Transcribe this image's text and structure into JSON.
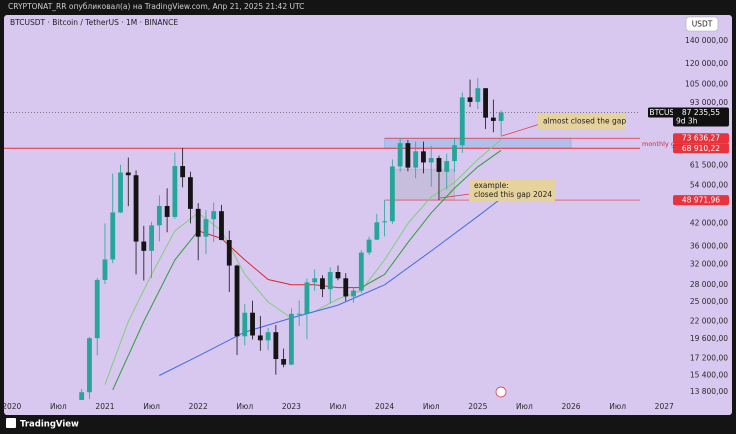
{
  "header": {
    "publisher": "CRYPTONAT_RR опубликовал(а) на TradingView.com, Апр 21, 2025 21:42 UTC",
    "brand": "TradingView"
  },
  "chart_data": {
    "type": "candlestick",
    "title": "BTCUSDT · Bitcoin / TetherUS · 1M · BINANCE",
    "currency_button": "USDT",
    "log_scale": true,
    "up_color": "#26a69a",
    "down_color": "#141414",
    "ylim": [
      13100,
      166000
    ],
    "yticks": [
      {
        "value": 140000,
        "label": "140 000,00"
      },
      {
        "value": 120000,
        "label": "120 000,00"
      },
      {
        "value": 105000,
        "label": "105 000,00"
      },
      {
        "value": 93000,
        "label": "93 000,00"
      },
      {
        "value": 61500,
        "label": "61 500,00"
      },
      {
        "value": 54000,
        "label": "54 000,00"
      },
      {
        "value": 42000,
        "label": "42 000,00"
      },
      {
        "value": 36000,
        "label": "36 000,00"
      },
      {
        "value": 32000,
        "label": "32 000,00"
      },
      {
        "value": 28000,
        "label": "28 000,00"
      },
      {
        "value": 25000,
        "label": "25 000,00"
      },
      {
        "value": 22000,
        "label": "22 000,00"
      },
      {
        "value": 19600,
        "label": "19 600,00"
      },
      {
        "value": 17200,
        "label": "17 200,00"
      },
      {
        "value": 15400,
        "label": "15 400,00"
      },
      {
        "value": 13800,
        "label": "13 800,00"
      }
    ],
    "xlim": [
      "2019-12",
      "2027-02"
    ],
    "xticks": [
      {
        "value": "2020-01",
        "label": "2020"
      },
      {
        "value": "2020-07",
        "label": "Июл"
      },
      {
        "value": "2021-01",
        "label": "2021"
      },
      {
        "value": "2021-07",
        "label": "Июл"
      },
      {
        "value": "2022-01",
        "label": "2022"
      },
      {
        "value": "2022-07",
        "label": "Июл"
      },
      {
        "value": "2023-01",
        "label": "2023"
      },
      {
        "value": "2023-07",
        "label": "Июл"
      },
      {
        "value": "2024-01",
        "label": "2024"
      },
      {
        "value": "2024-07",
        "label": "Июл"
      },
      {
        "value": "2025-01",
        "label": "2025"
      },
      {
        "value": "2025-07",
        "label": "Июл"
      },
      {
        "value": "2026-01",
        "label": "2026"
      },
      {
        "value": "2026-07",
        "label": "Июл"
      },
      {
        "value": "2027-01",
        "label": "2027"
      }
    ],
    "x": [
      "2020-10",
      "2020-11",
      "2020-12",
      "2021-01",
      "2021-02",
      "2021-03",
      "2021-04",
      "2021-05",
      "2021-06",
      "2021-07",
      "2021-08",
      "2021-09",
      "2021-10",
      "2021-11",
      "2021-12",
      "2022-01",
      "2022-02",
      "2022-03",
      "2022-04",
      "2022-05",
      "2022-06",
      "2022-07",
      "2022-08",
      "2022-09",
      "2022-10",
      "2022-11",
      "2022-12",
      "2023-01",
      "2023-02",
      "2023-03",
      "2023-04",
      "2023-05",
      "2023-06",
      "2023-07",
      "2023-08",
      "2023-09",
      "2023-10",
      "2023-11",
      "2023-12",
      "2024-01",
      "2024-02",
      "2024-03",
      "2024-04",
      "2024-05",
      "2024-06",
      "2024-07",
      "2024-08",
      "2024-09",
      "2024-10",
      "2024-11",
      "2024-12",
      "2025-01",
      "2025-02",
      "2025-03",
      "2025-04"
    ],
    "open": [
      10776,
      13791,
      19695,
      28923,
      33092,
      45135,
      58740,
      57697,
      37254,
      35045,
      41461,
      47100,
      43820,
      61300,
      56950,
      46217,
      38466,
      43160,
      45510,
      37630,
      31801,
      19942,
      23296,
      20050,
      19423,
      20490,
      17165,
      16541,
      23125,
      23141,
      28465,
      29233,
      27210,
      30472,
      29233,
      25941,
      26962,
      34640,
      37724,
      42283,
      42580,
      61131,
      71280,
      60672,
      67540,
      62772,
      64628,
      58974,
      63327,
      70292,
      96408,
      93576,
      102429,
      84350,
      82550
    ],
    "high": [
      14100,
      19863,
      29300,
      41950,
      58352,
      61844,
      64854,
      59592,
      41330,
      42448,
      50500,
      52920,
      67000,
      69000,
      59053,
      47990,
      45821,
      48190,
      47444,
      40023,
      31986,
      24668,
      25211,
      22799,
      21085,
      21480,
      18388,
      23960,
      25250,
      29184,
      31000,
      29820,
      31431,
      31804,
      30245,
      27483,
      35198,
      38450,
      44700,
      48969,
      64000,
      73777,
      72797,
      71979,
      71997,
      70080,
      65660,
      66498,
      73620,
      99588,
      108353,
      109588,
      102500,
      95000,
      88500
    ],
    "low": [
      10370,
      13195,
      17572,
      28130,
      32296,
      44950,
      47044,
      30000,
      28805,
      29278,
      37332,
      39600,
      43283,
      53256,
      42000,
      32917,
      34322,
      37155,
      37578,
      26700,
      17622,
      18782,
      19520,
      18125,
      18190,
      15476,
      16256,
      16499,
      21351,
      19549,
      26942,
      25811,
      24800,
      28861,
      25166,
      24900,
      26538,
      34097,
      37615,
      38555,
      41884,
      59005,
      59191,
      56552,
      58402,
      53485,
      49000,
      52550,
      58867,
      66835,
      90500,
      89256,
      78258,
      76606,
      74508
    ],
    "close": [
      13791,
      19695,
      28923,
      33092,
      45135,
      58740,
      57694,
      37253,
      35045,
      41461,
      47100,
      43824,
      61300,
      56950,
      46216,
      38466,
      43160,
      45510,
      37630,
      31801,
      19942,
      23293,
      20050,
      19423,
      20491,
      17164,
      16542,
      23125,
      23142,
      28465,
      29233,
      27211,
      30472,
      29232,
      25941,
      26962,
      34640,
      37723,
      42283,
      42580,
      61130,
      71280,
      60672,
      67540,
      62772,
      64628,
      58974,
      63327,
      70292,
      96408,
      93576,
      102429,
      84350,
      82550,
      87235.55
    ],
    "lines": [
      {
        "color": "#7fcf7a",
        "x": [
          "2021-01",
          "2021-04",
          "2021-07",
          "2021-10",
          "2022-01",
          "2022-04",
          "2022-07",
          "2022-10",
          "2023-01",
          "2023-04",
          "2023-07",
          "2023-10",
          "2024-01",
          "2024-04",
          "2024-07",
          "2024-10",
          "2025-01",
          "2025-04"
        ],
        "values": [
          14500,
          22000,
          30000,
          40000,
          45000,
          40000,
          30000,
          25000,
          22500,
          23500,
          25500,
          27000,
          33000,
          42000,
          50000,
          55000,
          64000,
          73000
        ]
      },
      {
        "color": "#2e9e3a",
        "x": [
          "2021-02",
          "2021-06",
          "2021-10",
          "2022-01"
        ],
        "values": [
          14000,
          22000,
          33000,
          40000
        ]
      },
      {
        "color": "#e0262b",
        "x": [
          "2022-01",
          "2022-04",
          "2022-07",
          "2022-10",
          "2023-01",
          "2023-04",
          "2023-07",
          "2023-10"
        ],
        "values": [
          40000,
          38000,
          33000,
          29000,
          28000,
          28000,
          27500,
          27500
        ]
      },
      {
        "color": "#2e9e3a",
        "x": [
          "2023-10",
          "2024-01",
          "2024-04",
          "2024-07",
          "2024-10",
          "2025-01",
          "2025-04"
        ],
        "values": [
          27500,
          30000,
          37000,
          45000,
          53000,
          61000,
          68000
        ]
      },
      {
        "color": "#3f6fe0",
        "x": [
          "2021-08",
          "2022-01",
          "2022-07",
          "2023-01",
          "2023-07",
          "2024-01",
          "2024-07",
          "2025-01",
          "2025-04"
        ],
        "values": [
          15400,
          17500,
          20500,
          22500,
          24500,
          28000,
          35000,
          44000,
          49500
        ]
      }
    ],
    "zones": [
      {
        "x": [
          "2024-01",
          "2026-01"
        ],
        "y": [
          68910.22,
          73636.27
        ],
        "color": "#8fb8e8"
      },
      {
        "x": [
          "2024-02",
          "2024-10"
        ],
        "y": [
          48971.96,
          60000
        ],
        "color": "#b9b4cc"
      }
    ],
    "current_price": {
      "symbol": "BTCUSDT",
      "value": 87235.55,
      "label": "87 235,55",
      "countdown": "9d 3h"
    },
    "levels": [
      {
        "value": 73636.27,
        "label": "73 636,27",
        "from": "2024-01"
      },
      {
        "value": 68910.22,
        "label": "68 910,22",
        "from": "2019-12"
      },
      {
        "value": 48971.96,
        "label": "48 971,96",
        "from": "2024-01"
      }
    ],
    "level_color": "#e8323c",
    "annotations": {
      "gap_note": "almost closed the gap",
      "gap_label": "monthly gap",
      "example_title": "example:",
      "example_text": "closed this gap 2024"
    }
  }
}
